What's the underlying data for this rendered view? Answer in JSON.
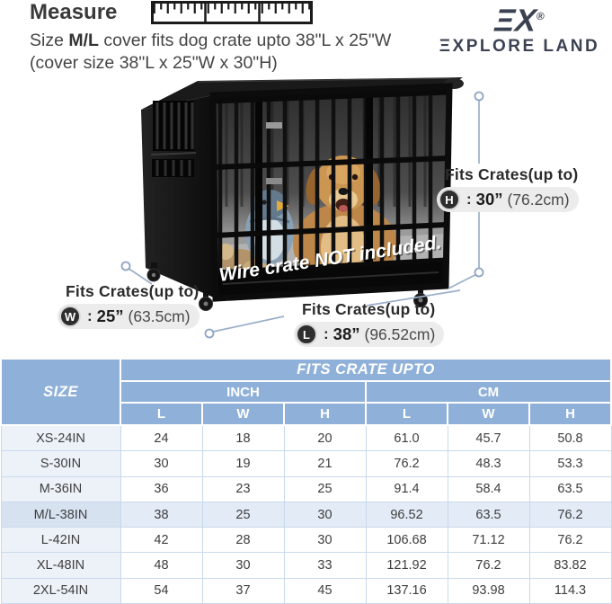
{
  "colors": {
    "table_header_blue": "#8fb0d8",
    "table_border_blue": "#c9d9ec",
    "size_col_bg": "#edf2f9",
    "highlight_row_bg": "#e3ebf6",
    "highlight_size_bg": "#d6e2f0",
    "leader_line": "#9bafc9",
    "brand_dark": "#3b4251",
    "cover_black": "#141414",
    "text_dark": "#3a3a3a"
  },
  "header": {
    "title": "Measure",
    "subtitle": {
      "prefix": "Size ",
      "size_bold": "M/L",
      "rest": " cover fits dog crate upto 38\"L x 25\"W",
      "line2": "(cover size 38\"L x 25\"W x 30\"H)"
    }
  },
  "brand": {
    "mark": "ΞX",
    "registered": "®",
    "name": "ΞXPLORE LAND"
  },
  "illustration": {
    "overlay_text": "Wire crate NOT included."
  },
  "dimensions": {
    "height": {
      "label": "Fits Crates(up to)",
      "badge": "H",
      "colon": ":",
      "value": "30”",
      "metric": "(76.2cm)"
    },
    "width": {
      "label": "Fits Crates(up to)",
      "badge": "W",
      "colon": ":",
      "value": "25”",
      "metric": "(63.5cm)"
    },
    "length": {
      "label": "Fits Crates(up to)",
      "badge": "L",
      "colon": ":",
      "value": "38”",
      "metric": "(96.52cm)"
    }
  },
  "table": {
    "title": "FITS CRATE UPTO",
    "size_header": "SIZE",
    "unit_groups": [
      "INCH",
      "CM"
    ],
    "dim_headers": [
      "L",
      "W",
      "H",
      "L",
      "W",
      "H"
    ],
    "rows": [
      {
        "size": "XS-24IN",
        "values": [
          "24",
          "18",
          "20",
          "61.0",
          "45.7",
          "50.8"
        ],
        "highlight": false
      },
      {
        "size": "S-30IN",
        "values": [
          "30",
          "19",
          "21",
          "76.2",
          "48.3",
          "53.3"
        ],
        "highlight": false
      },
      {
        "size": "M-36IN",
        "values": [
          "36",
          "23",
          "25",
          "91.4",
          "58.4",
          "63.5"
        ],
        "highlight": false
      },
      {
        "size": "M/L-38IN",
        "values": [
          "38",
          "25",
          "30",
          "96.52",
          "63.5",
          "76.2"
        ],
        "highlight": true
      },
      {
        "size": "L-42IN",
        "values": [
          "42",
          "28",
          "30",
          "106.68",
          "71.12",
          "76.2"
        ],
        "highlight": false
      },
      {
        "size": "XL-48IN",
        "values": [
          "48",
          "30",
          "33",
          "121.92",
          "76.2",
          "83.82"
        ],
        "highlight": false
      },
      {
        "size": "2XL-54IN",
        "values": [
          "54",
          "37",
          "45",
          "137.16",
          "93.98",
          "114.3"
        ],
        "highlight": false
      }
    ]
  }
}
